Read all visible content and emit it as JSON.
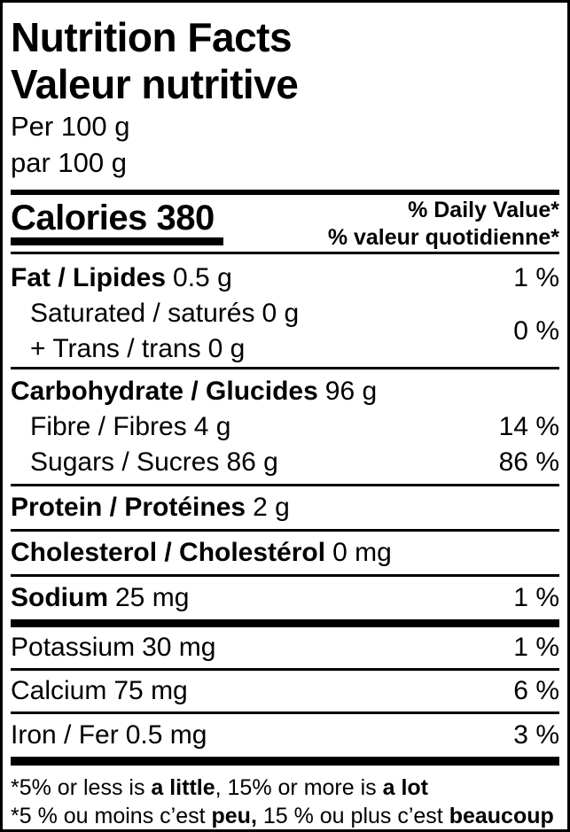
{
  "colors": {
    "border": "#000000",
    "background": "#ffffff",
    "text": "#000000"
  },
  "header": {
    "title_en": "Nutrition Facts",
    "title_fr": "Valeur nutritive",
    "serving_en": "Per 100 g",
    "serving_fr": "par 100 g"
  },
  "calories": {
    "text": "Calories 380"
  },
  "daily_value": {
    "line_en": "% Daily Value*",
    "line_fr": "% valeur quotidienne*"
  },
  "rows": {
    "fat": {
      "label": "Fat / Lipides",
      "amount": "0.5 g",
      "dv": "1 %"
    },
    "saturated": {
      "label": "Saturated / saturés",
      "amount": "0 g"
    },
    "trans": {
      "label": "+ Trans / trans",
      "amount": "0 g"
    },
    "sat_trans_dv": "0 %",
    "carbohydrate": {
      "label": "Carbohydrate / Glucides",
      "amount": "96 g"
    },
    "fibre": {
      "label": "Fibre / Fibres",
      "amount": "4 g",
      "dv": "14 %"
    },
    "sugars": {
      "label": "Sugars / Sucres",
      "amount": "86 g",
      "dv": "86 %"
    },
    "protein": {
      "label": "Protein / Protéines",
      "amount": "2 g"
    },
    "cholesterol": {
      "label": "Cholesterol / Cholestérol",
      "amount": "0 mg"
    },
    "sodium": {
      "label": "Sodium",
      "amount": "25 mg",
      "dv": "1 %"
    },
    "potassium": {
      "label": "Potassium",
      "amount": "30 mg",
      "dv": "1 %"
    },
    "calcium": {
      "label": "Calcium",
      "amount": "75 mg",
      "dv": "6 %"
    },
    "iron": {
      "label": "Iron / Fer",
      "amount": "0.5 mg",
      "dv": "3 %"
    }
  },
  "footnote": {
    "en_pre": "*5% or less is ",
    "en_bold1": "a little",
    "en_mid": ", 15% or more is ",
    "en_bold2": "a lot",
    "fr_pre": "*5 % ou moins c’est ",
    "fr_bold1": "peu,",
    "fr_mid": " 15 % ou plus c’est ",
    "fr_bold2": "beaucoup"
  }
}
